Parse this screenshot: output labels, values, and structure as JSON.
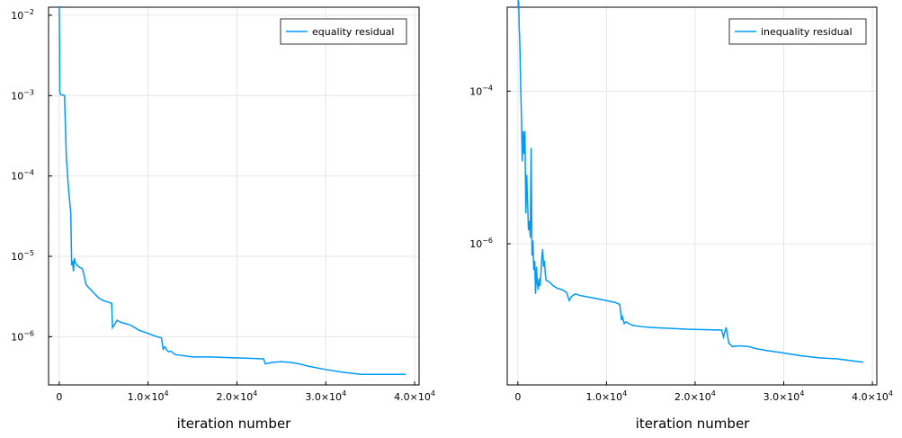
{
  "colors": {
    "series": "#009AF9",
    "grid": "#e6e6e6",
    "axis": "#000000",
    "background": "#ffffff"
  },
  "chart_data": [
    {
      "type": "line",
      "xlabel": "iteration number",
      "ylabel": "",
      "yscale": "log",
      "grid": true,
      "legend_position": "top-right",
      "xlim": [
        -1200,
        40500
      ],
      "ylim_log10": [
        -6.6,
        -1.9
      ],
      "xticks": [
        {
          "value": 0,
          "label": "0"
        },
        {
          "value": 10000,
          "label": "1.0×10",
          "exp": "4"
        },
        {
          "value": 20000,
          "label": "2.0×10",
          "exp": "4"
        },
        {
          "value": 30000,
          "label": "3.0×10",
          "exp": "4"
        },
        {
          "value": 40000,
          "label": "4.0×10",
          "exp": "4"
        }
      ],
      "yticks": [
        {
          "value": 0.01,
          "label": "10",
          "exp": "−2"
        },
        {
          "value": 0.001,
          "label": "10",
          "exp": "−3"
        },
        {
          "value": 0.0001,
          "label": "10",
          "exp": "−4"
        },
        {
          "value": 1e-05,
          "label": "10",
          "exp": "−5"
        },
        {
          "value": 1e-06,
          "label": "10",
          "exp": "−6"
        }
      ],
      "series": [
        {
          "name": "equality residual",
          "x": [
            0,
            40,
            60,
            120,
            200,
            400,
            600,
            800,
            900,
            1000,
            1100,
            1200,
            1300,
            1400,
            1500,
            1600,
            1700,
            1800,
            1900,
            2000,
            2200,
            2400,
            2600,
            2800,
            3000,
            3200,
            3500,
            4000,
            4500,
            5000,
            5500,
            5900,
            6000,
            6200,
            6500,
            7000,
            8000,
            9000,
            10000,
            11000,
            11500,
            11700,
            11900,
            12100,
            12300,
            12600,
            13000,
            14000,
            15000,
            17000,
            19000,
            21000,
            23000,
            23200,
            24000,
            25000,
            26000,
            27000,
            28000,
            30000,
            32000,
            34000,
            35000,
            37000,
            39000
          ],
          "y": [
            0.013,
            0.0045,
            0.0011,
            0.00105,
            0.00102,
            0.00102,
            0.001,
            0.00017,
            0.00012,
            8e-05,
            6e-05,
            4.5e-05,
            3.5e-05,
            7.7e-06,
            8.8e-06,
            6.5e-06,
            9.5e-06,
            8.5e-06,
            8e-06,
            7.8e-06,
            7.4e-06,
            7.2e-06,
            7e-06,
            5.8e-06,
            4.5e-06,
            4.2e-06,
            3.9e-06,
            3.4e-06,
            3e-06,
            2.8e-06,
            2.7e-06,
            2.6e-06,
            1.3e-06,
            1.4e-06,
            1.6e-06,
            1.5e-06,
            1.4e-06,
            1.2e-06,
            1.1e-06,
            1e-06,
            9.7e-07,
            7e-07,
            7.5e-07,
            6.8e-07,
            6.5e-07,
            6.6e-07,
            6e-07,
            5.8e-07,
            5.6e-07,
            5.6e-07,
            5.5e-07,
            5.4e-07,
            5.3e-07,
            4.6e-07,
            4.8e-07,
            4.9e-07,
            4.8e-07,
            4.6e-07,
            4.3e-07,
            3.9e-07,
            3.6e-07,
            3.4e-07,
            3.4e-07,
            3.4e-07,
            3.4e-07
          ]
        }
      ]
    },
    {
      "type": "line",
      "xlabel": "iteration number",
      "ylabel": "",
      "yscale": "log",
      "grid": true,
      "legend_position": "top-right",
      "xlim": [
        -1200,
        40500
      ],
      "ylim_log10": [
        -7.85,
        -2.9
      ],
      "xticks": [
        {
          "value": 0,
          "label": "0"
        },
        {
          "value": 10000,
          "label": "1.0×10",
          "exp": "4"
        },
        {
          "value": 20000,
          "label": "2.0×10",
          "exp": "4"
        },
        {
          "value": 30000,
          "label": "3.0×10",
          "exp": "4"
        },
        {
          "value": 40000,
          "label": "4.0×10",
          "exp": "4"
        }
      ],
      "yticks": [
        {
          "value": 0.0001,
          "label": "10",
          "exp": "−4"
        },
        {
          "value": 1e-06,
          "label": "10",
          "exp": "−6"
        }
      ],
      "series": [
        {
          "name": "inequality residual",
          "x": [
            0,
            50,
            100,
            150,
            200,
            250,
            300,
            400,
            500,
            600,
            700,
            800,
            900,
            1000,
            1100,
            1200,
            1300,
            1400,
            1500,
            1600,
            1700,
            1800,
            1900,
            2000,
            2100,
            2200,
            2300,
            2400,
            2500,
            2600,
            2700,
            2800,
            2900,
            3000,
            3100,
            3200,
            3500,
            4000,
            4500,
            5000,
            5500,
            5800,
            6000,
            6200,
            6500,
            7000,
            8000,
            9000,
            10000,
            11000,
            11500,
            11700,
            11800,
            12000,
            12200,
            12500,
            13000,
            14000,
            15000,
            17000,
            19000,
            21000,
            23000,
            23200,
            23500,
            23800,
            24200,
            25000,
            26000,
            27000,
            28000,
            30000,
            32000,
            34000,
            36000,
            37000,
            39000
          ],
          "y": [
            0.0025,
            0.0012,
            0.0015,
            0.0007,
            0.0005,
            0.0003,
            0.00015,
            5e-05,
            1.2e-05,
            3e-05,
            1.5e-05,
            3e-05,
            2.5e-06,
            8e-06,
            3.5e-06,
            1.5e-06,
            2e-06,
            1.2e-06,
            1.8e-05,
            7e-07,
            1.1e-06,
            4.5e-07,
            6e-07,
            2.2e-07,
            5e-07,
            3e-07,
            2.5e-07,
            3.5e-07,
            2.8e-07,
            4e-07,
            6.5e-07,
            8.5e-07,
            5e-07,
            6e-07,
            4e-07,
            3.3e-07,
            3.2e-07,
            2.8e-07,
            2.6e-07,
            2.5e-07,
            2.3e-07,
            1.8e-07,
            2e-07,
            2.1e-07,
            2.2e-07,
            2.1e-07,
            2e-07,
            1.9e-07,
            1.8e-07,
            1.7e-07,
            1.6e-07,
            1e-07,
            1.1e-07,
            9e-08,
            9.5e-08,
            9e-08,
            8.5e-08,
            8.2e-08,
            8e-08,
            7.8e-08,
            7.6e-08,
            7.5e-08,
            7.4e-08,
            6e-08,
            8e-08,
            5e-08,
            4.5e-08,
            4.6e-08,
            4.5e-08,
            4.2e-08,
            4e-08,
            3.7e-08,
            3.4e-08,
            3.2e-08,
            3.1e-08,
            3e-08,
            2.8e-08
          ]
        }
      ]
    }
  ]
}
